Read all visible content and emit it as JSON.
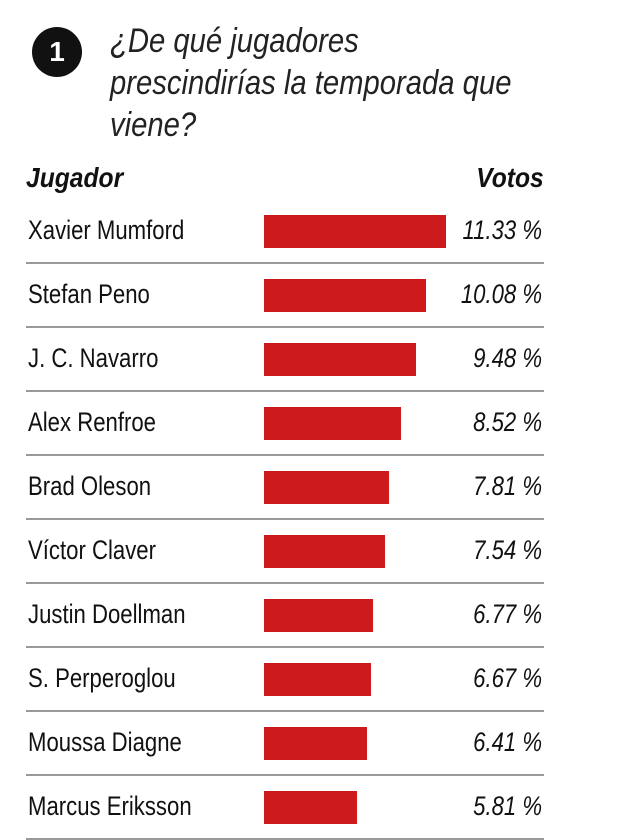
{
  "badge_number": "1",
  "question": "¿De qué jugadores prescindirías la temporada que viene?",
  "colors": {
    "bar": "#cc1a1d",
    "badge": "#111111",
    "divider": "#9a9a9a"
  },
  "chart_data": {
    "type": "bar",
    "orientation": "horizontal",
    "title": "¿De qué jugadores prescindirías la temporada que viene?",
    "column_headers": {
      "player": "Jugador",
      "votes": "Votos"
    },
    "unit": "%",
    "xlim": [
      0,
      11.33
    ],
    "grid": false,
    "legend": "none",
    "categories": [
      "Xavier Mumford",
      "Stefan Peno",
      "J. C. Navarro",
      "Alex Renfroe",
      "Brad Oleson",
      "Víctor Claver",
      "Justin Doellman",
      "S. Perperoglou",
      "Moussa Diagne",
      "Marcus Eriksson"
    ],
    "values": [
      11.33,
      10.08,
      9.48,
      8.52,
      7.81,
      7.54,
      6.77,
      6.67,
      6.41,
      5.81
    ],
    "value_labels": [
      "11.33 %",
      "10.08 %",
      "9.48 %",
      "8.52 %",
      "7.81 %",
      "7.54 %",
      "6.77 %",
      "6.67 %",
      "6.41 %",
      "5.81 %"
    ]
  }
}
